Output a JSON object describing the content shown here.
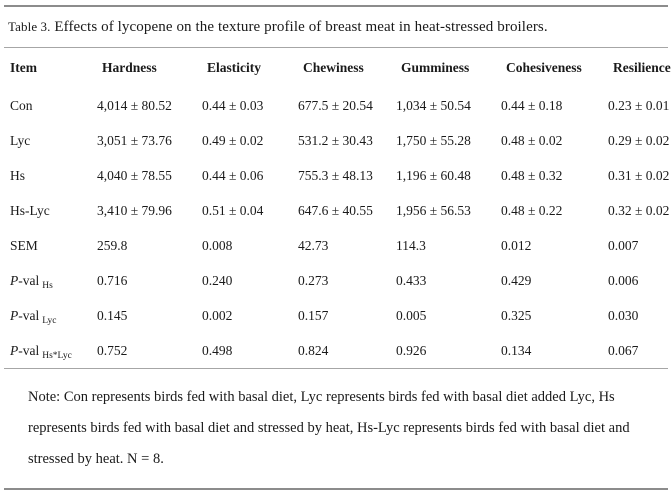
{
  "title": {
    "label": "Table 3.",
    "text": "Effects of lycopene on the texture profile of breast meat in heat-stressed broilers."
  },
  "columns": [
    "Item",
    "Hardness",
    "Elasticity",
    "Chewiness",
    "Gumminess",
    "Cohesiveness",
    "Resilience"
  ],
  "rows": [
    {
      "label": {
        "italic": "",
        "text": "Con",
        "sub": ""
      },
      "values": [
        "4,014 ± 80.52",
        "0.44 ± 0.03",
        "677.5 ± 20.54",
        "1,034 ± 50.54",
        "0.44 ± 0.18",
        "0.23 ± 0.01"
      ]
    },
    {
      "label": {
        "italic": "",
        "text": "Lyc",
        "sub": ""
      },
      "values": [
        "3,051 ± 73.76",
        "0.49 ± 0.02",
        "531.2 ± 30.43",
        "1,750 ± 55.28",
        "0.48 ± 0.02",
        "0.29 ± 0.02"
      ]
    },
    {
      "label": {
        "italic": "",
        "text": "Hs",
        "sub": ""
      },
      "values": [
        "4,040 ± 78.55",
        "0.44 ± 0.06",
        "755.3 ± 48.13",
        "1,196 ± 60.48",
        "0.48 ± 0.32",
        "0.31 ± 0.02"
      ]
    },
    {
      "label": {
        "italic": "",
        "text": "Hs-Lyc",
        "sub": ""
      },
      "values": [
        "3,410 ± 79.96",
        "0.51 ± 0.04",
        "647.6 ± 40.55",
        "1,956 ± 56.53",
        "0.48 ± 0.22",
        "0.32 ± 0.02"
      ]
    },
    {
      "label": {
        "italic": "",
        "text": "SEM",
        "sub": ""
      },
      "values": [
        "259.8",
        "0.008",
        "42.73",
        "114.3",
        "0.012",
        "0.007"
      ]
    },
    {
      "label": {
        "italic": "P",
        "text": "-val",
        "sub": "Hs"
      },
      "values": [
        "0.716",
        "0.240",
        "0.273",
        "0.433",
        "0.429",
        "0.006"
      ]
    },
    {
      "label": {
        "italic": "P",
        "text": "-val",
        "sub": "Lyc"
      },
      "values": [
        "0.145",
        "0.002",
        "0.157",
        "0.005",
        "0.325",
        "0.030"
      ]
    },
    {
      "label": {
        "italic": "P",
        "text": "-val",
        "sub": "Hs*Lyc"
      },
      "values": [
        "0.752",
        "0.498",
        "0.824",
        "0.926",
        "0.134",
        "0.067"
      ]
    }
  ],
  "note": "Note: Con represents birds fed with basal diet, Lyc represents birds fed with basal diet added Lyc, Hs represents birds fed with basal diet and stressed by heat, Hs-Lyc represents birds fed with basal diet and stressed by heat. N = 8.",
  "colors": {
    "text": "#1a1a1a",
    "rule_heavy": "#8c8c8c",
    "rule_light": "#a6a6a6",
    "background": "#ffffff"
  }
}
